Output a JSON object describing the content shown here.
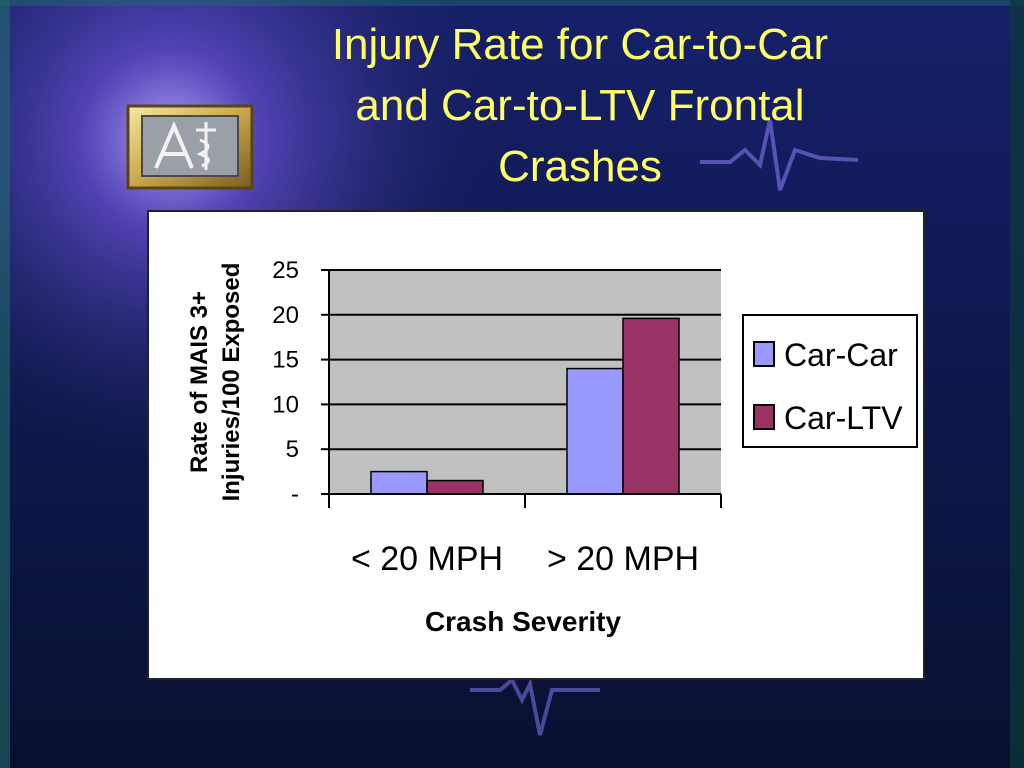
{
  "slide": {
    "title": "Injury Rate for Car-to-Car\nand Car-to-LTV Frontal\nCrashes"
  },
  "logo": {
    "icon": "caduceus-compass-logo-icon"
  },
  "colors": {
    "title": "#ffff66",
    "background": "#0b1540",
    "plot_area": "#c0c0c0",
    "car_car": "#9999ff",
    "car_ltv": "#993366"
  },
  "chart_data": {
    "type": "bar",
    "categories": [
      "< 20 MPH",
      "> 20 MPH"
    ],
    "series": [
      {
        "name": "Car-Car",
        "values": [
          2.5,
          14.0
        ],
        "color": "#9999ff"
      },
      {
        "name": "Car-LTV",
        "values": [
          1.5,
          19.6
        ],
        "color": "#993366"
      }
    ],
    "xlabel": "Crash Severity",
    "ylabel_lines": [
      "Rate of MAIS 3+",
      "Injuries/100 Exposed"
    ],
    "ylim": [
      0,
      25
    ],
    "yticks": [
      0,
      5,
      10,
      15,
      20,
      25
    ],
    "ytick_labels": [
      "-",
      "5",
      "10",
      "15",
      "20",
      "25"
    ],
    "grid": true,
    "legend_position": "right"
  }
}
